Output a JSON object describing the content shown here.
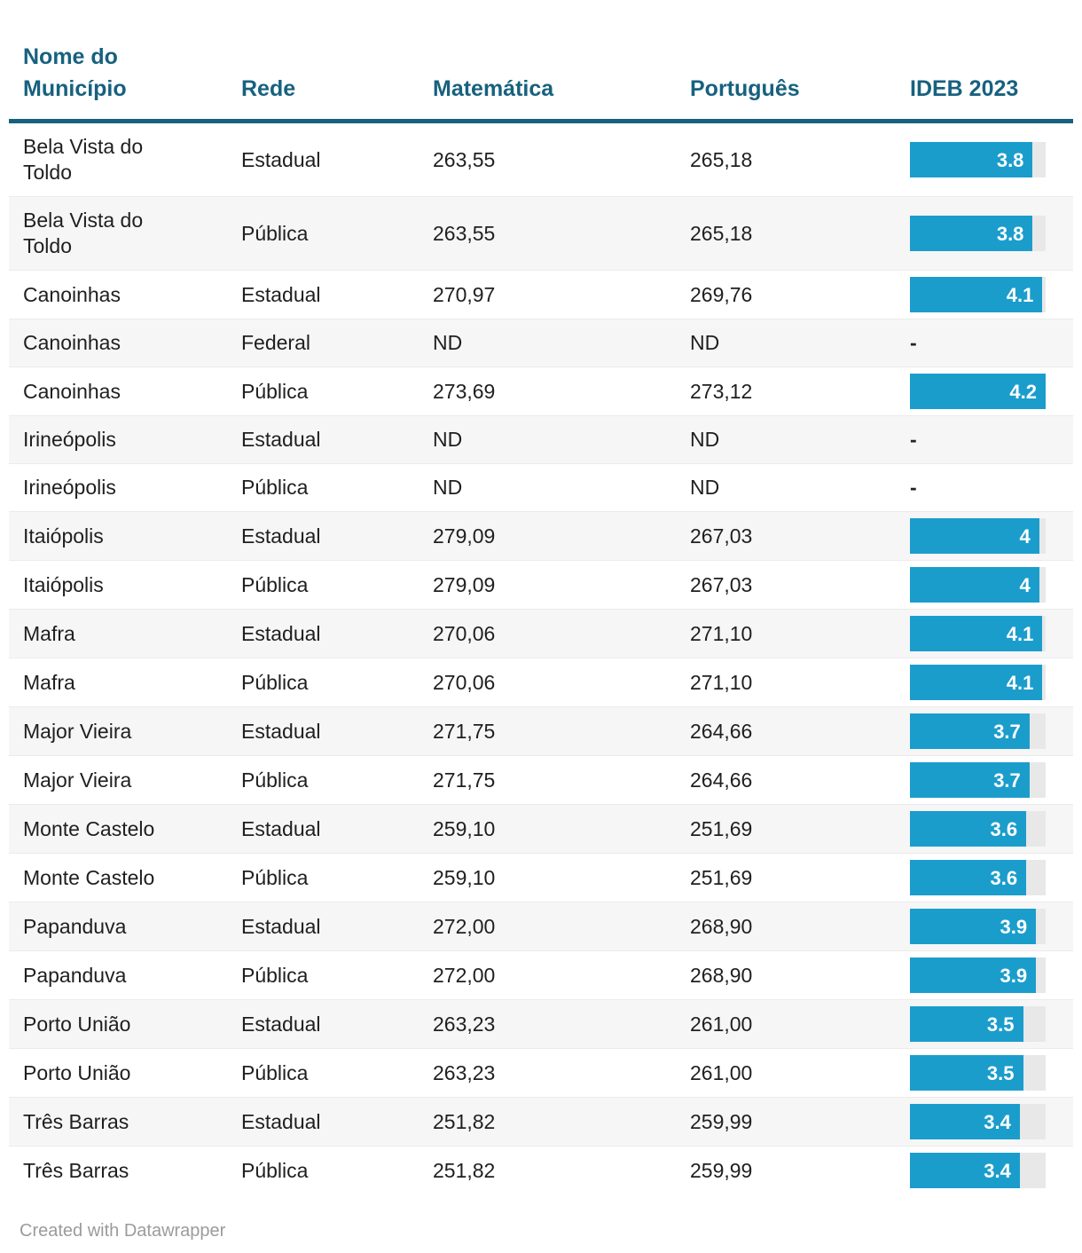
{
  "colors": {
    "header_text": "#17617f",
    "header_rule": "#17617f",
    "bar_fill": "#1b9dcc",
    "bar_track": "#e8e8e8",
    "bar_label_text": "#ffffff",
    "row_alt_bg": "#f6f6f6",
    "body_text": "#1f1f1f",
    "footer_text": "#9b9b9b"
  },
  "table": {
    "columns": [
      {
        "lines": [
          "Nome do",
          "Município"
        ]
      },
      {
        "lines": [
          "Rede"
        ]
      },
      {
        "lines": [
          "Matemática"
        ]
      },
      {
        "lines": [
          "Português"
        ]
      },
      {
        "lines": [
          "IDEB 2023"
        ]
      }
    ],
    "missing_marker": "-",
    "bar_axis_max": 4.2
  },
  "chart_data": {
    "type": "table",
    "columns": [
      "Nome do Município",
      "Rede",
      "Matemática",
      "Português",
      "IDEB 2023"
    ],
    "bar_column": "IDEB 2023",
    "bar_range": [
      0,
      4.2
    ],
    "rows": [
      {
        "municipio": "Bela Vista do Toldo",
        "rede": "Estadual",
        "matematica": "263,55",
        "portugues": "265,18",
        "ideb": 3.8,
        "ideb_label": "3.8"
      },
      {
        "municipio": "Bela Vista do Toldo",
        "rede": "Pública",
        "matematica": "263,55",
        "portugues": "265,18",
        "ideb": 3.8,
        "ideb_label": "3.8"
      },
      {
        "municipio": "Canoinhas",
        "rede": "Estadual",
        "matematica": "270,97",
        "portugues": "269,76",
        "ideb": 4.1,
        "ideb_label": "4.1"
      },
      {
        "municipio": "Canoinhas",
        "rede": "Federal",
        "matematica": "ND",
        "portugues": "ND",
        "ideb": null,
        "ideb_label": "-"
      },
      {
        "municipio": "Canoinhas",
        "rede": "Pública",
        "matematica": "273,69",
        "portugues": "273,12",
        "ideb": 4.2,
        "ideb_label": "4.2"
      },
      {
        "municipio": "Irineópolis",
        "rede": "Estadual",
        "matematica": "ND",
        "portugues": "ND",
        "ideb": null,
        "ideb_label": "-"
      },
      {
        "municipio": "Irineópolis",
        "rede": "Pública",
        "matematica": "ND",
        "portugues": "ND",
        "ideb": null,
        "ideb_label": "-"
      },
      {
        "municipio": "Itaiópolis",
        "rede": "Estadual",
        "matematica": "279,09",
        "portugues": "267,03",
        "ideb": 4.0,
        "ideb_label": "4"
      },
      {
        "municipio": "Itaiópolis",
        "rede": "Pública",
        "matematica": "279,09",
        "portugues": "267,03",
        "ideb": 4.0,
        "ideb_label": "4"
      },
      {
        "municipio": "Mafra",
        "rede": "Estadual",
        "matematica": "270,06",
        "portugues": "271,10",
        "ideb": 4.1,
        "ideb_label": "4.1"
      },
      {
        "municipio": "Mafra",
        "rede": "Pública",
        "matematica": "270,06",
        "portugues": "271,10",
        "ideb": 4.1,
        "ideb_label": "4.1"
      },
      {
        "municipio": "Major Vieira",
        "rede": "Estadual",
        "matematica": "271,75",
        "portugues": "264,66",
        "ideb": 3.7,
        "ideb_label": "3.7"
      },
      {
        "municipio": "Major Vieira",
        "rede": "Pública",
        "matematica": "271,75",
        "portugues": "264,66",
        "ideb": 3.7,
        "ideb_label": "3.7"
      },
      {
        "municipio": "Monte Castelo",
        "rede": "Estadual",
        "matematica": "259,10",
        "portugues": "251,69",
        "ideb": 3.6,
        "ideb_label": "3.6"
      },
      {
        "municipio": "Monte Castelo",
        "rede": "Pública",
        "matematica": "259,10",
        "portugues": "251,69",
        "ideb": 3.6,
        "ideb_label": "3.6"
      },
      {
        "municipio": "Papanduva",
        "rede": "Estadual",
        "matematica": "272,00",
        "portugues": "268,90",
        "ideb": 3.9,
        "ideb_label": "3.9"
      },
      {
        "municipio": "Papanduva",
        "rede": "Pública",
        "matematica": "272,00",
        "portugues": "268,90",
        "ideb": 3.9,
        "ideb_label": "3.9"
      },
      {
        "municipio": "Porto União",
        "rede": "Estadual",
        "matematica": "263,23",
        "portugues": "261,00",
        "ideb": 3.5,
        "ideb_label": "3.5"
      },
      {
        "municipio": "Porto União",
        "rede": "Pública",
        "matematica": "263,23",
        "portugues": "261,00",
        "ideb": 3.5,
        "ideb_label": "3.5"
      },
      {
        "municipio": "Três Barras",
        "rede": "Estadual",
        "matematica": "251,82",
        "portugues": "259,99",
        "ideb": 3.4,
        "ideb_label": "3.4"
      },
      {
        "municipio": "Três Barras",
        "rede": "Pública",
        "matematica": "251,82",
        "portugues": "259,99",
        "ideb": 3.4,
        "ideb_label": "3.4"
      }
    ]
  },
  "footer": {
    "attribution": "Created with Datawrapper"
  }
}
